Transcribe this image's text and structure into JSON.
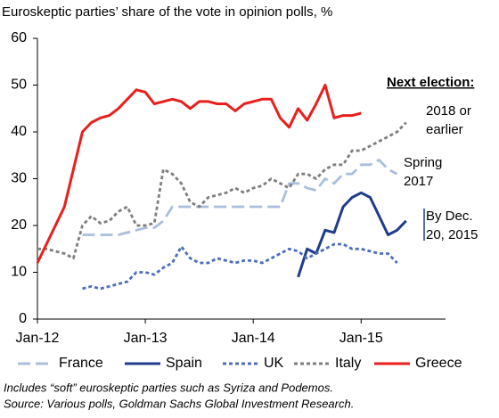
{
  "chart_data": {
    "type": "line",
    "title": "Euroskeptic parties’ share of the vote in opinion polls, %",
    "x": [
      "2012-01",
      "2012-02",
      "2012-03",
      "2012-04",
      "2012-05",
      "2012-06",
      "2012-07",
      "2012-08",
      "2012-09",
      "2012-10",
      "2012-11",
      "2012-12",
      "2013-01",
      "2013-02",
      "2013-03",
      "2013-04",
      "2013-05",
      "2013-06",
      "2013-07",
      "2013-08",
      "2013-09",
      "2013-10",
      "2013-11",
      "2013-12",
      "2014-01",
      "2014-02",
      "2014-03",
      "2014-04",
      "2014-05",
      "2014-06",
      "2014-07",
      "2014-08",
      "2014-09",
      "2014-10",
      "2014-11",
      "2014-12",
      "2015-01",
      "2015-02",
      "2015-03",
      "2015-04",
      "2015-05",
      "2015-06"
    ],
    "xlim": [
      "2012-01",
      "2015-09"
    ],
    "xticks": [
      {
        "value": "2012-01",
        "label": "Jan-12"
      },
      {
        "value": "2013-01",
        "label": "Jan-13"
      },
      {
        "value": "2014-01",
        "label": "Jan-14"
      },
      {
        "value": "2015-01",
        "label": "Jan-15"
      }
    ],
    "ylim": [
      0,
      60
    ],
    "yticks": [
      0,
      10,
      20,
      30,
      40,
      50,
      60
    ],
    "grid": false,
    "legend": "bottom",
    "series": [
      {
        "name": "France",
        "color": "#aabfdd",
        "style": "longdash",
        "values": [
          null,
          null,
          null,
          null,
          null,
          18,
          18,
          18,
          18,
          18,
          18.5,
          19,
          19.5,
          19.5,
          21,
          24,
          24,
          24,
          24,
          24,
          24,
          24,
          24,
          24,
          24,
          24,
          24,
          24,
          29,
          29,
          28,
          27.5,
          30,
          29,
          31,
          31,
          33,
          33,
          34,
          32,
          31,
          null
        ]
      },
      {
        "name": "Spain",
        "color": "#1f3d8c",
        "style": "solid",
        "values": [
          null,
          null,
          null,
          null,
          null,
          null,
          null,
          null,
          null,
          null,
          null,
          null,
          null,
          null,
          null,
          null,
          null,
          null,
          null,
          null,
          null,
          null,
          null,
          null,
          null,
          null,
          null,
          null,
          null,
          9,
          15,
          14,
          19,
          18.5,
          24,
          26,
          27,
          26,
          22,
          18,
          19,
          21
        ]
      },
      {
        "name": "UK",
        "color": "#4d6fb8",
        "style": "dotted",
        "values": [
          null,
          null,
          null,
          null,
          null,
          6.5,
          7,
          6.5,
          7,
          7.5,
          8,
          10,
          10,
          9.5,
          11,
          12,
          15.5,
          13,
          12,
          12,
          13,
          12.5,
          12,
          12.5,
          12.5,
          12,
          13,
          14,
          15,
          14.5,
          13,
          14,
          15,
          16,
          16,
          15,
          15,
          14.5,
          14,
          14,
          12,
          null
        ]
      },
      {
        "name": "Italy",
        "color": "#7f7f7f",
        "style": "dotted",
        "values": [
          15,
          15,
          14.5,
          14,
          13,
          20,
          22,
          20.5,
          21,
          23,
          24,
          20,
          20,
          20.5,
          32,
          31,
          29,
          25,
          24,
          26,
          26.5,
          27,
          28,
          27,
          28,
          28.5,
          30,
          29,
          28,
          31,
          31,
          30,
          32,
          33,
          33,
          36,
          36,
          37,
          38,
          39,
          40,
          42
        ]
      },
      {
        "name": "Greece",
        "color": "#e8201d",
        "style": "solid",
        "values": [
          12,
          16,
          20,
          24,
          32,
          40,
          42,
          43,
          43.5,
          45,
          47,
          49,
          48.5,
          46,
          46.5,
          47,
          46.5,
          45,
          46.5,
          46.5,
          46,
          46,
          44.5,
          46,
          46.5,
          47,
          47,
          43,
          41,
          45,
          42.5,
          46,
          50,
          43,
          43.5,
          43.5,
          44,
          null,
          null,
          null,
          null,
          null
        ]
      }
    ],
    "heading": "Next election:",
    "annotations": [
      {
        "lines": [
          "2018 or",
          "earlier"
        ],
        "color": "#7f7f7f"
      },
      {
        "lines": [
          "Spring",
          "2017"
        ],
        "color": "#aabfdd"
      },
      {
        "lines": [
          "By Dec.",
          "20, 2015"
        ],
        "color": "#1f3d8c"
      }
    ],
    "notes": [
      "Includes “soft” euroskeptic parties such as Syriza and Podemos.",
      "Source: Various polls, Goldman Sachs Global Investment Research."
    ]
  }
}
